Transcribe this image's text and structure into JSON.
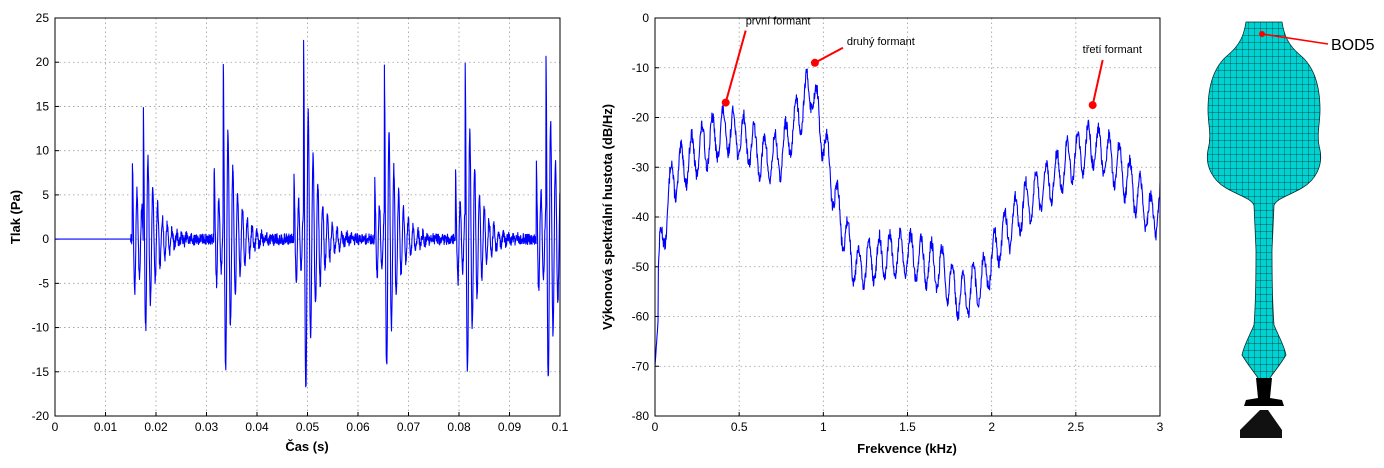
{
  "chart_data": [
    {
      "type": "line",
      "xlabel": "Čas (s)",
      "ylabel": "Tlak (Pa)",
      "xlim": [
        0,
        0.1
      ],
      "ylim": [
        -20,
        25
      ],
      "xticks": [
        "0",
        "0.01",
        "0.02",
        "0.03",
        "0.04",
        "0.05",
        "0.06",
        "0.07",
        "0.08",
        "0.09",
        "0.1"
      ],
      "yticks": [
        "25",
        "20",
        "15",
        "10",
        "5",
        "0",
        "-5",
        "-10",
        "-15",
        "-20"
      ],
      "grid": true,
      "color": "#0000ff",
      "onset_time": 0.015,
      "glottal_pulses": [
        {
          "t": 0.0153,
          "max": 9.2,
          "min": -7.2
        },
        {
          "t": 0.0175,
          "max": 16.0,
          "min": -13.0
        },
        {
          "t": 0.0315,
          "max": 8.0,
          "min": -5.5
        },
        {
          "t": 0.0333,
          "max": 17.5,
          "min": -15.5
        },
        {
          "t": 0.0473,
          "max": 7.5,
          "min": -5.5
        },
        {
          "t": 0.0492,
          "max": 20.5,
          "min": -18.0
        },
        {
          "t": 0.0633,
          "max": 7.0,
          "min": -5.0
        },
        {
          "t": 0.0652,
          "max": 17.5,
          "min": -15.5
        },
        {
          "t": 0.0793,
          "max": 7.5,
          "min": -5.5
        },
        {
          "t": 0.0812,
          "max": 17.5,
          "min": -15.5
        },
        {
          "t": 0.0953,
          "max": 9.0,
          "min": -7.0
        },
        {
          "t": 0.0972,
          "max": 18.0,
          "min": -16.3
        }
      ]
    },
    {
      "type": "line",
      "xlabel": "Frekvence (kHz)",
      "ylabel": "Výkonová spektrální hustota (dB/Hz)",
      "xlim": [
        0,
        3
      ],
      "ylim": [
        -80,
        0
      ],
      "xticks": [
        "0",
        "0.5",
        "1",
        "1.5",
        "2",
        "2.5",
        "3"
      ],
      "yticks": [
        "0",
        "-10",
        "-20",
        "-30",
        "-40",
        "-50",
        "-60",
        "-70",
        "-80"
      ],
      "grid": true,
      "color": "#0000ff",
      "harmonic_spacing_khz": 0.062,
      "envelope_khz_db": [
        [
          0.0,
          -60
        ],
        [
          0.03,
          -45
        ],
        [
          0.1,
          -30
        ],
        [
          0.2,
          -26
        ],
        [
          0.3,
          -23
        ],
        [
          0.42,
          -20
        ],
        [
          0.55,
          -22
        ],
        [
          0.65,
          -26
        ],
        [
          0.75,
          -25
        ],
        [
          0.85,
          -17
        ],
        [
          0.93,
          -11
        ],
        [
          1.0,
          -22
        ],
        [
          1.1,
          -38
        ],
        [
          1.2,
          -48
        ],
        [
          1.3,
          -46
        ],
        [
          1.5,
          -45
        ],
        [
          1.7,
          -48
        ],
        [
          1.82,
          -54
        ],
        [
          1.95,
          -50
        ],
        [
          2.05,
          -42
        ],
        [
          2.2,
          -35
        ],
        [
          2.35,
          -30
        ],
        [
          2.5,
          -25
        ],
        [
          2.6,
          -23
        ],
        [
          2.75,
          -27
        ],
        [
          2.85,
          -32
        ],
        [
          2.95,
          -38
        ],
        [
          3.0,
          -35
        ]
      ],
      "annotations": [
        {
          "label": "první formant",
          "x": 0.42,
          "y": -17
        },
        {
          "label": "druhý formant",
          "x": 0.95,
          "y": -9
        },
        {
          "label": "třetí formant",
          "x": 2.6,
          "y": -17.5
        }
      ],
      "annotation_color": "#ff0000"
    }
  ],
  "model": {
    "label": "BOD5",
    "mesh_color": "#00d2d2",
    "marker_color": "#ff0000"
  }
}
